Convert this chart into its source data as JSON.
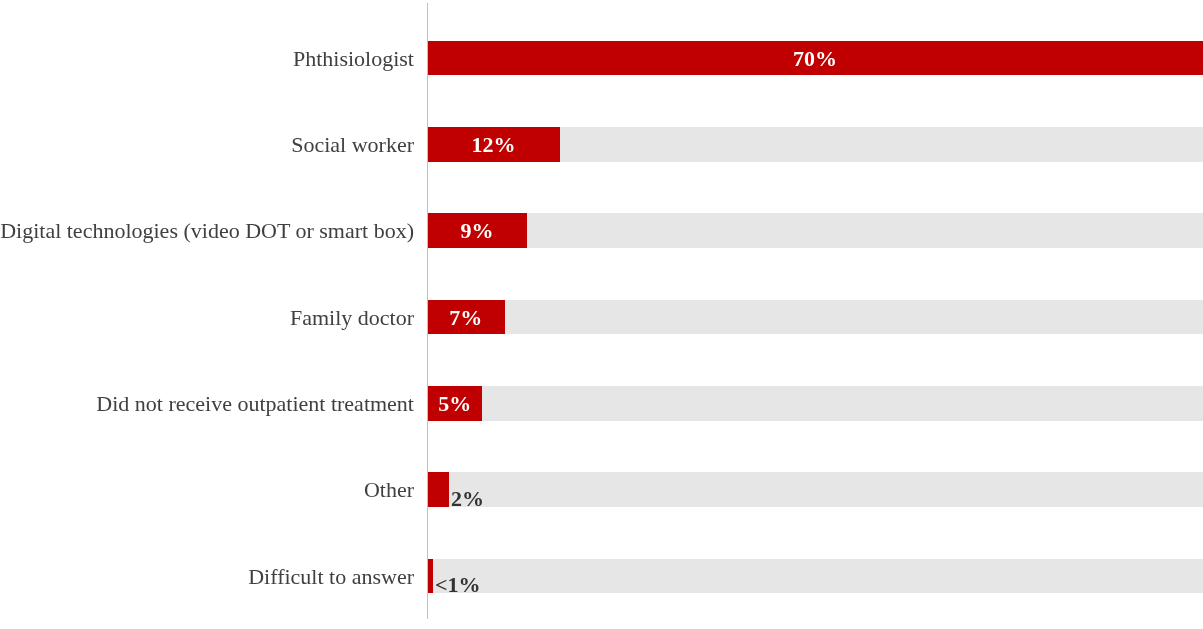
{
  "chart_data": {
    "type": "bar",
    "orientation": "horizontal",
    "stacked": true,
    "categories": [
      "Phthisiologist",
      "Social worker",
      "Digital technologies (video DOT or smart box)",
      "Family doctor",
      "Did not receive outpatient treatment",
      "Other",
      "Difficult to answer"
    ],
    "xlim": [
      0,
      70
    ],
    "series": [
      {
        "color": "#c00000",
        "values": [
          70,
          12,
          9,
          7,
          5,
          2,
          0.5
        ],
        "value_labels": [
          "70%",
          "12%",
          "9%",
          "7%",
          "5%",
          "2%",
          "<1%"
        ]
      },
      {
        "color": "#e6e6e6",
        "values": [
          0,
          58,
          61,
          63,
          65,
          68,
          69.5
        ]
      }
    ]
  }
}
